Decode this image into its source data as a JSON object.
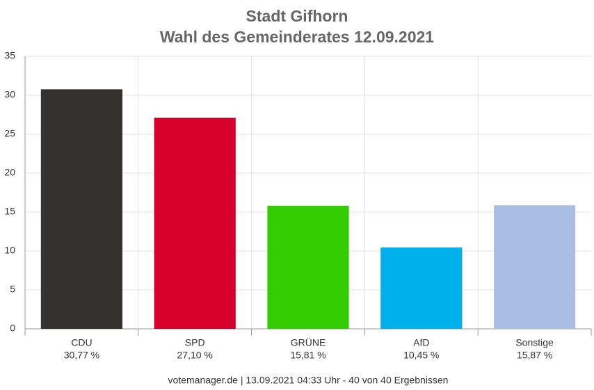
{
  "chart_data": {
    "type": "bar",
    "title": "Stadt Gifhorn",
    "subtitle": "Wahl des Gemeinderates 12.09.2021",
    "categories": [
      "CDU",
      "SPD",
      "GRÜNE",
      "AfD",
      "Sonstige"
    ],
    "values": [
      30.77,
      27.1,
      15.81,
      10.45,
      15.87
    ],
    "value_labels": [
      "30,77 %",
      "27,10 %",
      "15,81 %",
      "10,45 %",
      "15,87 %"
    ],
    "colors": [
      "#343231",
      "#d7002a",
      "#33cc00",
      "#00b0ea",
      "#a9bde5"
    ],
    "ylim": [
      0,
      35
    ],
    "yticks": [
      0,
      5,
      10,
      15,
      20,
      25,
      30,
      35
    ],
    "grid": true,
    "footer": "votemanager.de | 13.09.2021 04:33 Uhr - 40 von 40 Ergebnissen"
  }
}
